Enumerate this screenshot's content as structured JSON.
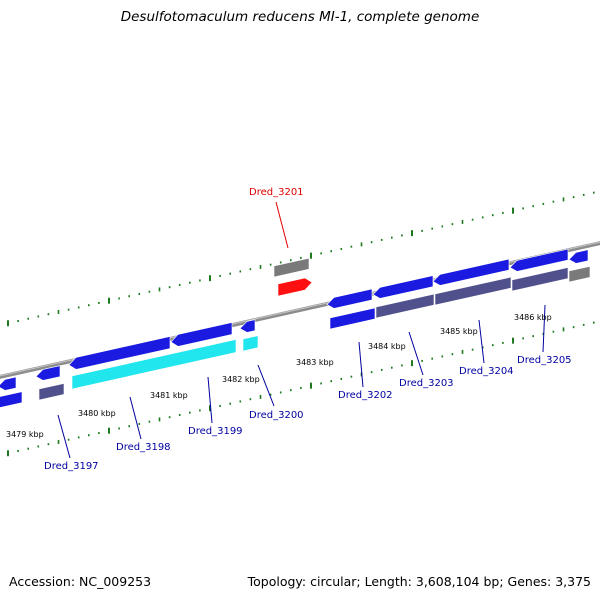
{
  "title": "Desulfotomaculum reducens MI-1, complete genome",
  "footer": {
    "accession": "Accession: NC_009253",
    "summary": "Topology: circular; Length: 3,608,104 bp; Genes: 3,375"
  },
  "colors": {
    "backbone": "#8c8c8c",
    "gene_forward": "#1a1ae0",
    "gene_reverse_dark": "#50508c",
    "gene_reverse_cyan": "#22e6ee",
    "gene_gray": "#7a7a7a",
    "gene_highlight": "#ff1010",
    "tick": "#1e7a1e",
    "label_blue": "#0000a0",
    "label_red": "#e00000"
  },
  "scale_labels": [
    "3479 kbp",
    "3480 kbp",
    "3481 kbp",
    "3482 kbp",
    "3483 kbp",
    "3484 kbp",
    "3485 kbp",
    "3486 kbp"
  ],
  "gene_labels": [
    {
      "name": "Dred_3197",
      "color": "blue"
    },
    {
      "name": "Dred_3198",
      "color": "blue"
    },
    {
      "name": "Dred_3199",
      "color": "blue"
    },
    {
      "name": "Dred_3200",
      "color": "blue"
    },
    {
      "name": "Dred_3201",
      "color": "red"
    },
    {
      "name": "Dred_3202",
      "color": "blue"
    },
    {
      "name": "Dred_3203",
      "color": "blue"
    },
    {
      "name": "Dred_3204",
      "color": "blue"
    },
    {
      "name": "Dred_3205",
      "color": "blue"
    }
  ]
}
